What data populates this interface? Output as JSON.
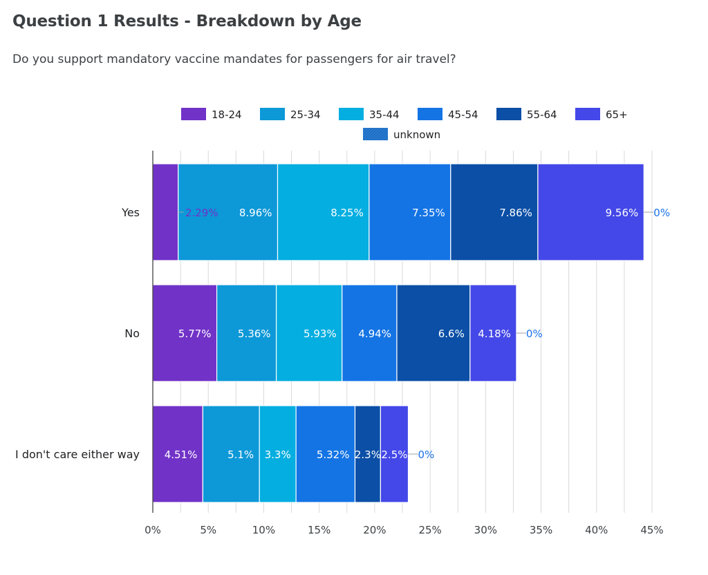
{
  "page": {
    "title": "Question 1 Results - Breakdown by Age",
    "subtitle": "Do you support mandatory vaccine mandates for passengers for air travel?"
  },
  "chart_data": {
    "type": "bar",
    "orientation": "horizontal",
    "stacked": true,
    "categories": [
      "Yes",
      "No",
      "I don't care either way"
    ],
    "series": [
      {
        "name": "18-24",
        "color": "#7132c8",
        "values": [
          2.29,
          5.77,
          4.51
        ],
        "labels": [
          "2.29%",
          "5.77%",
          "4.51%"
        ]
      },
      {
        "name": "25-34",
        "color": "#0d98d8",
        "values": [
          8.96,
          5.36,
          5.1
        ],
        "labels": [
          "8.96%",
          "5.36%",
          "5.1%"
        ]
      },
      {
        "name": "35-44",
        "color": "#04aee0",
        "values": [
          8.25,
          5.93,
          3.3
        ],
        "labels": [
          "8.25%",
          "5.93%",
          "3.3%"
        ]
      },
      {
        "name": "45-54",
        "color": "#1474e4",
        "values": [
          7.35,
          4.94,
          5.32
        ],
        "labels": [
          "7.35%",
          "4.94%",
          "5.32%"
        ]
      },
      {
        "name": "55-64",
        "color": "#0b4fa6",
        "values": [
          7.86,
          6.6,
          2.3
        ],
        "labels": [
          "7.86%",
          "6.6%",
          "2.3%"
        ]
      },
      {
        "name": "65+",
        "color": "#4448e8",
        "values": [
          9.56,
          4.18,
          2.5
        ],
        "labels": [
          "9.56%",
          "4.18%",
          "2.5%"
        ]
      },
      {
        "name": "unknown",
        "color": "#1a6ec4",
        "values": [
          0,
          0,
          0
        ],
        "labels": [
          "0%",
          "0%",
          "0%"
        ]
      }
    ],
    "xaxis": {
      "min": 0,
      "max": 45,
      "step": 5,
      "tick_labels": [
        "0%",
        "5%",
        "10%",
        "15%",
        "20%",
        "25%",
        "30%",
        "35%",
        "40%",
        "45%"
      ]
    },
    "grid": true,
    "legend": "top"
  }
}
